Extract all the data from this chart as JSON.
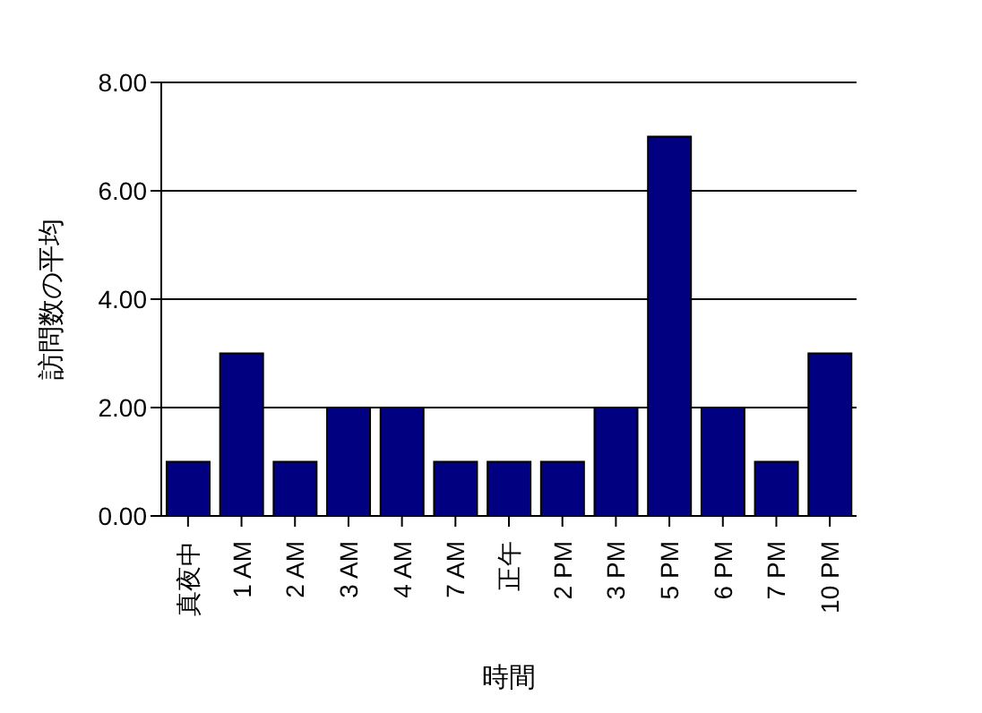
{
  "chart_data": {
    "type": "bar",
    "xlabel": "時間",
    "ylabel": "訪問数の平均",
    "categories": [
      "真夜中",
      "1 AM",
      "2 AM",
      "3 AM",
      "4 AM",
      "7 AM",
      "正午",
      "2 PM",
      "3 PM",
      "5 PM",
      "6 PM",
      "7 PM",
      "10 PM"
    ],
    "values": [
      1,
      3,
      1,
      2,
      2,
      1,
      1,
      1,
      2,
      7,
      2,
      1,
      3
    ],
    "color": "#000080",
    "ylim": [
      0,
      8
    ],
    "yticks": [
      {
        "value": 0,
        "label": "0.00"
      },
      {
        "value": 2,
        "label": "2.00"
      },
      {
        "value": 4,
        "label": "4.00"
      },
      {
        "value": 6,
        "label": "6.00"
      },
      {
        "value": 8,
        "label": "8.00"
      }
    ],
    "grid": "y"
  }
}
